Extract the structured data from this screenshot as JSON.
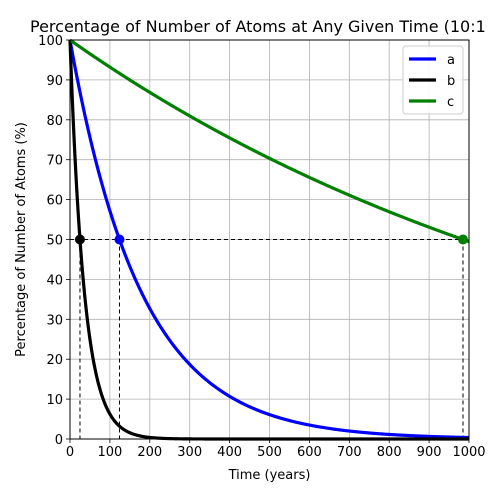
{
  "chart_data": {
    "type": "line",
    "title": "Percentage of Number of Atoms at Any Given Time (10:1",
    "xlabel": "Time (years)",
    "ylabel": "Percentage of Number of Atoms (%)",
    "xlim": [
      0,
      1000
    ],
    "ylim": [
      0,
      100
    ],
    "x_ticks": [
      0,
      100,
      200,
      300,
      400,
      500,
      600,
      700,
      800,
      900,
      1000
    ],
    "y_ticks": [
      0,
      10,
      20,
      30,
      40,
      50,
      60,
      70,
      80,
      90,
      100
    ],
    "grid": true,
    "legend_position": "top-right",
    "series": [
      {
        "name": "a",
        "color": "#0000ff",
        "half_life": 124,
        "x": [
          0,
          25,
          50,
          75,
          100,
          124,
          150,
          200,
          250,
          300,
          350,
          400,
          450,
          500,
          600,
          700,
          800,
          900,
          1000
        ],
        "values": [
          100,
          86.9,
          75.6,
          65.8,
          57.2,
          50,
          43.2,
          32.7,
          24.7,
          18.7,
          14.1,
          10.7,
          8.1,
          6.1,
          3.5,
          2.0,
          1.1,
          0.7,
          0.4
        ]
      },
      {
        "name": "b",
        "color": "#000000",
        "half_life": 25,
        "x": [
          0,
          10,
          25,
          40,
          50,
          75,
          100,
          125,
          150,
          200,
          300,
          500,
          1000
        ],
        "values": [
          100,
          75.8,
          50,
          33,
          25,
          12.5,
          6.25,
          3.1,
          1.6,
          0.4,
          0,
          0,
          0
        ]
      },
      {
        "name": "c",
        "color": "#008000",
        "half_life": 985,
        "x": [
          0,
          100,
          200,
          300,
          400,
          500,
          600,
          700,
          800,
          900,
          985
        ],
        "values": [
          100,
          93.2,
          86.9,
          81.0,
          75.5,
          70.3,
          65.5,
          61.1,
          56.9,
          53.1,
          50
        ]
      }
    ],
    "markers": [
      {
        "series": "b",
        "x": 25,
        "y": 50,
        "color": "#000000"
      },
      {
        "series": "a",
        "x": 124,
        "y": 50,
        "color": "#0000ff"
      },
      {
        "series": "c",
        "x": 985,
        "y": 50,
        "color": "#008000"
      }
    ],
    "reference_line_y": 50
  }
}
